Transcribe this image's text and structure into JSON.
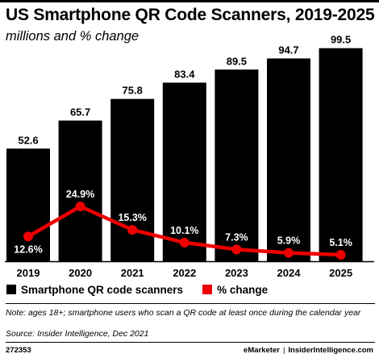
{
  "chart_data": {
    "type": "bar",
    "title": "US Smartphone QR Code Scanners, 2019-2025",
    "subtitle": "millions and % change",
    "categories": [
      "2019",
      "2020",
      "2021",
      "2022",
      "2023",
      "2024",
      "2025"
    ],
    "series": [
      {
        "name": "Smartphone QR code scanners",
        "type": "bar",
        "color": "#000000",
        "values": [
          52.6,
          65.7,
          75.8,
          83.4,
          89.5,
          94.7,
          99.5
        ],
        "labels": [
          "52.6",
          "65.7",
          "75.8",
          "83.4",
          "89.5",
          "94.7",
          "99.5"
        ]
      },
      {
        "name": "% change",
        "type": "line",
        "color": "#ee0000",
        "values": [
          12.6,
          24.9,
          15.3,
          10.1,
          7.3,
          5.9,
          5.1
        ],
        "labels": [
          "12.6%",
          "24.9%",
          "15.3%",
          "10.1%",
          "7.3%",
          "5.9%",
          "5.1%"
        ]
      }
    ],
    "legend_position": "bottom",
    "grid": false
  },
  "note": "Note: ages 18+; smartphone users who scan a QR code at least once during the calendar year",
  "source": "Source: Insider Intelligence, Dec 2021",
  "footer": {
    "chart_id": "272353",
    "brand_left": "eMarketer",
    "brand_sep": "|",
    "brand_right": "InsiderIntelligence.com"
  }
}
